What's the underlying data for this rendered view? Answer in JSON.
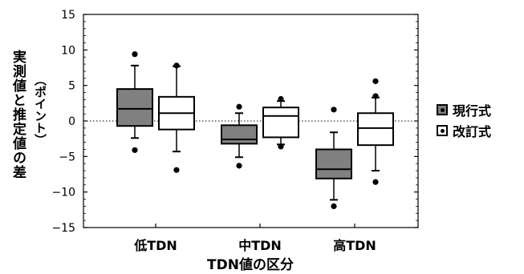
{
  "chart_data": {
    "type": "box",
    "ylabel": "実測値と推定値の差",
    "ylabel_unit": "（ポイント）",
    "xlabel": "TDN値の区分",
    "categories": [
      "低TDN",
      "中TDN",
      "高TDN"
    ],
    "ylim": [
      -15,
      15
    ],
    "yticks": [
      15,
      10,
      5,
      0,
      -5,
      -10,
      -15
    ],
    "ytick_labels": [
      "15",
      "10",
      "5",
      "0",
      "−5",
      "−10",
      "−15"
    ],
    "zero_line": "dotted",
    "grid": false,
    "legend_position": "right",
    "series": [
      {
        "name": "現行式",
        "color": "#808080",
        "boxes": [
          {
            "whisker_low": -2.4,
            "q1": -0.7,
            "median": 1.7,
            "q3": 4.5,
            "whisker_high": 7.8,
            "outliers": [
              -4.1,
              9.4
            ]
          },
          {
            "whisker_low": -5.1,
            "q1": -3.2,
            "median": -2.6,
            "q3": -0.6,
            "whisker_high": 1.1,
            "outliers": [
              -6.3,
              2.0
            ]
          },
          {
            "whisker_low": -11.1,
            "q1": -8.1,
            "median": -6.8,
            "q3": -4.0,
            "whisker_high": -1.6,
            "outliers": [
              -12.0,
              1.6
            ]
          }
        ]
      },
      {
        "name": "改訂式",
        "color": "#ffffff",
        "boxes": [
          {
            "whisker_low": -4.3,
            "q1": -1.2,
            "median": 1.1,
            "q3": 3.4,
            "whisker_high": 7.7,
            "outliers": [
              -6.9,
              7.8
            ]
          },
          {
            "whisker_low": -3.3,
            "q1": -2.3,
            "median": 0.7,
            "q3": 1.9,
            "whisker_high": 2.8,
            "outliers": [
              -3.6,
              3.1
            ]
          },
          {
            "whisker_low": -7.0,
            "q1": -3.4,
            "median": -1.0,
            "q3": 1.1,
            "whisker_high": 3.3,
            "outliers": [
              -8.6,
              3.5,
              5.6
            ]
          }
        ]
      }
    ]
  }
}
